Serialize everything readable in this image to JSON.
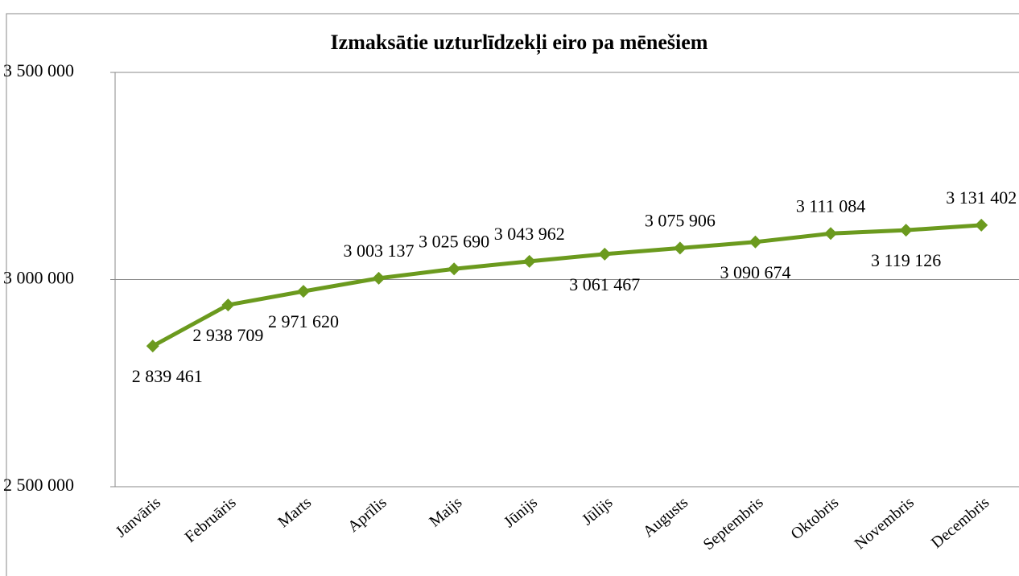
{
  "chart_data": {
    "type": "line",
    "title": "Izmaksātie uzturlīdzekļi eiro pa mēnešiem",
    "categories": [
      "Janvāris",
      "Februāris",
      "Marts",
      "Aprīlis",
      "Maijs",
      "Jūnijs",
      "Jūlijs",
      "Augusts",
      "Septembris",
      "Oktobris",
      "Novembris",
      "Decembris"
    ],
    "series": [
      {
        "color": "#6b9a1e",
        "values": [
          2839461,
          2938709,
          2971620,
          3003137,
          3025690,
          3043962,
          3061467,
          3075906,
          3090674,
          3111084,
          3119126,
          3131402
        ],
        "value_labels": [
          "2 839 461",
          "2 938 709",
          "2 971 620",
          "3 003 137",
          "3 025 690",
          "3 043 962",
          "3 061 467",
          "3 075 906",
          "3 090 674",
          "3 111 084",
          "3 119 126",
          "3 131 402"
        ]
      }
    ],
    "ylim": [
      2500000,
      3500000
    ],
    "yticks": [
      {
        "value": 2500000,
        "label": "2 500 000"
      },
      {
        "value": 3000000,
        "label": "3 000 000"
      },
      {
        "value": 3500000,
        "label": "3 500 000"
      }
    ],
    "grid": true
  }
}
